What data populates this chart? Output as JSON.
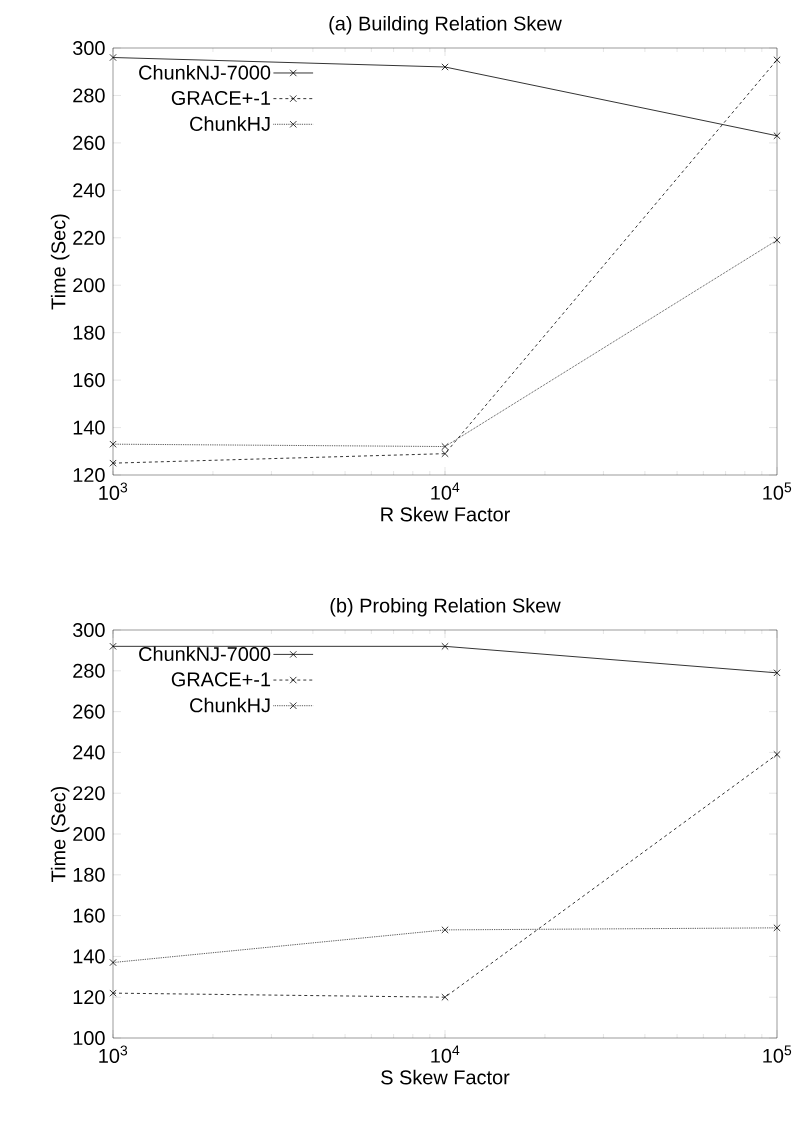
{
  "chart_data": [
    {
      "type": "line",
      "title": "(a) Building Relation Skew",
      "xlabel": "R Skew Factor",
      "ylabel": "Time (Sec)",
      "log": "x",
      "x": [
        1000,
        10000,
        100000
      ],
      "xlim": [
        1000,
        100000
      ],
      "xticks": [
        {
          "value": 1000,
          "label": "10$^{3}$"
        },
        {
          "value": 10000,
          "label": "10$^{4}$"
        },
        {
          "value": 100000,
          "label": "10$^{5}$"
        }
      ],
      "ylim": [
        120,
        300
      ],
      "yticks": [
        120,
        140,
        160,
        180,
        200,
        220,
        240,
        260,
        280,
        300
      ],
      "grid": false,
      "legend": "top left",
      "series": [
        {
          "name": "ChunkNJ-7000",
          "color": "#000000",
          "values": [
            296,
            292,
            263
          ],
          "marker": "cross",
          "line_style": "solid"
        },
        {
          "name": "GRACE+-1",
          "color": "#000000",
          "values": [
            125,
            129,
            295
          ],
          "marker": "cross",
          "line_style": "dashed"
        },
        {
          "name": "ChunkHJ",
          "color": "#000000",
          "values": [
            133,
            132,
            219
          ],
          "marker": "cross",
          "line_style": "dotted"
        }
      ]
    },
    {
      "type": "line",
      "title": "(b) Probing Relation Skew",
      "xlabel": "S Skew Factor",
      "ylabel": "Time (Sec)",
      "log": "x",
      "x": [
        1000,
        10000,
        100000
      ],
      "xlim": [
        1000,
        100000
      ],
      "xticks": [
        {
          "value": 1000,
          "label": "10$^{3}$"
        },
        {
          "value": 10000,
          "label": "10$^{4}$"
        },
        {
          "value": 100000,
          "label": "10$^{5}$"
        }
      ],
      "ylim": [
        100,
        300
      ],
      "yticks": [
        100,
        120,
        140,
        160,
        180,
        200,
        220,
        240,
        260,
        280,
        300
      ],
      "grid": false,
      "legend": "top left",
      "series": [
        {
          "name": "ChunkNJ-7000",
          "color": "#000000",
          "values": [
            292,
            292,
            279
          ],
          "marker": "cross",
          "line_style": "solid"
        },
        {
          "name": "GRACE+-1",
          "color": "#000000",
          "values": [
            122,
            120,
            239
          ],
          "marker": "cross",
          "line_style": "dashed"
        },
        {
          "name": "ChunkHJ",
          "color": "#000000",
          "values": [
            137,
            153,
            154
          ],
          "marker": "cross",
          "line_style": "dotted"
        }
      ]
    }
  ]
}
